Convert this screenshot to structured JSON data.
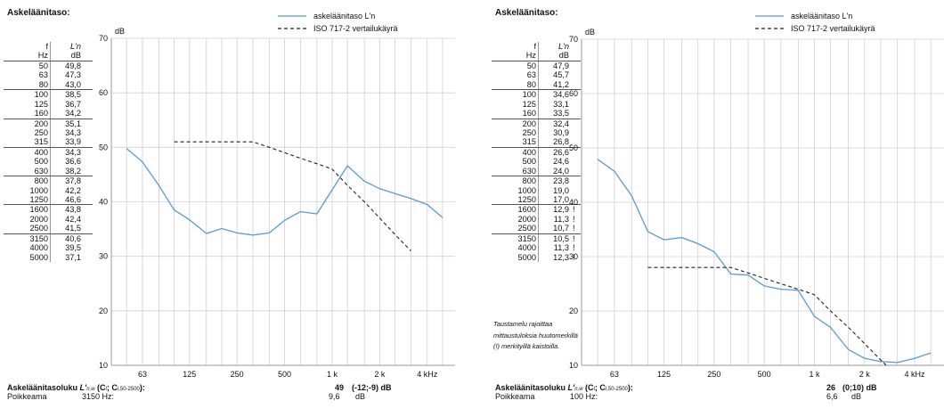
{
  "panels": [
    {
      "title": "Askeläänitaso:",
      "table_header": {
        "f": "f",
        "f_unit": "Hz",
        "val": "L'n",
        "val_unit": "dB"
      },
      "rows": [
        {
          "f": "50",
          "v": "49,8",
          "m": ""
        },
        {
          "f": "63",
          "v": "47,3",
          "m": ""
        },
        {
          "f": "80",
          "v": "43,0",
          "m": ""
        },
        {
          "f": "100",
          "v": "38,5",
          "m": ""
        },
        {
          "f": "125",
          "v": "36,7",
          "m": ""
        },
        {
          "f": "160",
          "v": "34,2",
          "m": ""
        },
        {
          "f": "200",
          "v": "35,1",
          "m": ""
        },
        {
          "f": "250",
          "v": "34,3",
          "m": ""
        },
        {
          "f": "315",
          "v": "33,9",
          "m": ""
        },
        {
          "f": "400",
          "v": "34,3",
          "m": ""
        },
        {
          "f": "500",
          "v": "36,6",
          "m": ""
        },
        {
          "f": "630",
          "v": "38,2",
          "m": ""
        },
        {
          "f": "800",
          "v": "37,8",
          "m": ""
        },
        {
          "f": "1000",
          "v": "42,2",
          "m": ""
        },
        {
          "f": "1250",
          "v": "46,6",
          "m": ""
        },
        {
          "f": "1600",
          "v": "43,8",
          "m": ""
        },
        {
          "f": "2000",
          "v": "42,4",
          "m": ""
        },
        {
          "f": "2500",
          "v": "41,5",
          "m": ""
        },
        {
          "f": "3150",
          "v": "40,6",
          "m": ""
        },
        {
          "f": "4000",
          "v": "39,5",
          "m": ""
        },
        {
          "f": "5000",
          "v": "37,1",
          "m": ""
        }
      ],
      "note": "",
      "footer": {
        "label": "Askeläänitasoluku L'n,w (Cl; Cl,50-2500):",
        "label_main": "Askeläänitasoluku ",
        "label_sym": "L'",
        "label_sub": "n,w",
        "label_paren": " (C",
        "label_sub2": "l",
        "label_sep": "; C",
        "label_sub3": "l,50-2500",
        "label_end": "):",
        "rating": "49",
        "rating_terms": "(-12;-9) dB",
        "deviation_label": "Poikkeama",
        "deviation_freq": "3150 Hz:",
        "deviation_value": "9,6",
        "deviation_unit": "dB"
      }
    },
    {
      "title": "Askeläänitaso:",
      "table_header": {
        "f": "f",
        "f_unit": "Hz",
        "val": "L'n",
        "val_unit": "dB"
      },
      "rows": [
        {
          "f": "50",
          "v": "47,9",
          "m": ""
        },
        {
          "f": "63",
          "v": "45,7",
          "m": ""
        },
        {
          "f": "80",
          "v": "41,2",
          "m": ""
        },
        {
          "f": "100",
          "v": "34,6",
          "m": ""
        },
        {
          "f": "125",
          "v": "33,1",
          "m": ""
        },
        {
          "f": "160",
          "v": "33,5",
          "m": ""
        },
        {
          "f": "200",
          "v": "32,4",
          "m": ""
        },
        {
          "f": "250",
          "v": "30,9",
          "m": ""
        },
        {
          "f": "315",
          "v": "26,8",
          "m": ""
        },
        {
          "f": "400",
          "v": "26,6",
          "m": ""
        },
        {
          "f": "500",
          "v": "24,6",
          "m": ""
        },
        {
          "f": "630",
          "v": "24,0",
          "m": ""
        },
        {
          "f": "800",
          "v": "23,8",
          "m": ""
        },
        {
          "f": "1000",
          "v": "19,0",
          "m": ""
        },
        {
          "f": "1250",
          "v": "17,0",
          "m": ""
        },
        {
          "f": "1600",
          "v": "12,9",
          "m": "!"
        },
        {
          "f": "2000",
          "v": "11,3",
          "m": "!"
        },
        {
          "f": "2500",
          "v": "10,7",
          "m": "!"
        },
        {
          "f": "3150",
          "v": "10,5",
          "m": "!"
        },
        {
          "f": "4000",
          "v": "11,3",
          "m": "!"
        },
        {
          "f": "5000",
          "v": "12,3",
          "m": "!"
        }
      ],
      "note": "Taustamelu rajoittaa mittaustuloksia huutomerkillä (!) merkityillä kaistoilla.",
      "footer": {
        "label": "Askeläänitasoluku L'n,w (Cl; Cl,50-2500):",
        "label_main": "Askeläänitasoluku ",
        "label_sym": "L'",
        "label_sub": "n,w",
        "label_paren": " (C",
        "label_sub2": "l",
        "label_sep": "; C",
        "label_sub3": "l,50-2500",
        "label_end": "):",
        "rating": "26",
        "rating_terms": "(0;10) dB",
        "deviation_label": "Poikkeama",
        "deviation_freq": "100 Hz:",
        "deviation_value": "6,6",
        "deviation_unit": "dB"
      }
    }
  ],
  "chart_data": [
    {
      "type": "line",
      "xscale": "log",
      "ylabel": "dB",
      "ylim": [
        10,
        70
      ],
      "yticks": [
        10,
        20,
        30,
        40,
        50,
        60,
        70
      ],
      "xticks": [
        {
          "f": 63,
          "label": "63"
        },
        {
          "f": 125,
          "label": "125"
        },
        {
          "f": 250,
          "label": "250"
        },
        {
          "f": 500,
          "label": "500"
        },
        {
          "f": 1000,
          "label": "1 k"
        },
        {
          "f": 2000,
          "label": "2 k"
        },
        {
          "f": 4000,
          "label": "4 kHz"
        }
      ],
      "series": [
        {
          "name": "askeläänitaso L'n",
          "style": "solid",
          "color": "#5b9bd5",
          "x": [
            50,
            63,
            80,
            100,
            125,
            160,
            200,
            250,
            315,
            400,
            500,
            630,
            800,
            1000,
            1250,
            1600,
            2000,
            2500,
            3150,
            4000,
            5000
          ],
          "y": [
            49.8,
            47.3,
            43.0,
            38.5,
            36.7,
            34.2,
            35.1,
            34.3,
            33.9,
            34.3,
            36.6,
            38.2,
            37.8,
            42.2,
            46.6,
            43.8,
            42.4,
            41.5,
            40.6,
            39.5,
            37.1
          ]
        },
        {
          "name": "ISO 717-2 vertailukäyrä",
          "style": "dashed",
          "color": "#222222",
          "x": [
            100,
            125,
            160,
            200,
            250,
            315,
            400,
            500,
            630,
            800,
            1000,
            1250,
            1600,
            2000,
            2500,
            3150
          ],
          "y": [
            51,
            51,
            51,
            51,
            51,
            51,
            50,
            49,
            48,
            47,
            46,
            43,
            40,
            37,
            34,
            31
          ]
        }
      ]
    },
    {
      "type": "line",
      "xscale": "log",
      "ylabel": "dB",
      "ylim": [
        10,
        70
      ],
      "yticks": [
        10,
        20,
        30,
        40,
        50,
        60,
        70
      ],
      "xticks": [
        {
          "f": 63,
          "label": "63"
        },
        {
          "f": 125,
          "label": "125"
        },
        {
          "f": 250,
          "label": "250"
        },
        {
          "f": 500,
          "label": "500"
        },
        {
          "f": 1000,
          "label": "1 k"
        },
        {
          "f": 2000,
          "label": "2 k"
        },
        {
          "f": 4000,
          "label": "4 kHz"
        }
      ],
      "series": [
        {
          "name": "askeläänitaso L'n",
          "style": "solid",
          "color": "#5b9bd5",
          "x": [
            50,
            63,
            80,
            100,
            125,
            160,
            200,
            250,
            315,
            400,
            500,
            630,
            800,
            1000,
            1250,
            1600,
            2000,
            2500,
            3150,
            4000,
            5000
          ],
          "y": [
            47.9,
            45.7,
            41.2,
            34.6,
            33.1,
            33.5,
            32.4,
            30.9,
            26.8,
            26.6,
            24.6,
            24.0,
            23.8,
            19.0,
            17.0,
            12.9,
            11.3,
            10.7,
            10.5,
            11.3,
            12.3
          ]
        },
        {
          "name": "ISO 717-2 vertailukäyrä",
          "style": "dashed",
          "color": "#222222",
          "x": [
            100,
            125,
            160,
            200,
            250,
            315,
            400,
            500,
            630,
            800,
            1000,
            1250,
            1600,
            2000,
            2500,
            3150
          ],
          "y": [
            28,
            28,
            28,
            28,
            28,
            28,
            27,
            26,
            25,
            24,
            23,
            20,
            17,
            14,
            11,
            8
          ]
        }
      ]
    }
  ]
}
